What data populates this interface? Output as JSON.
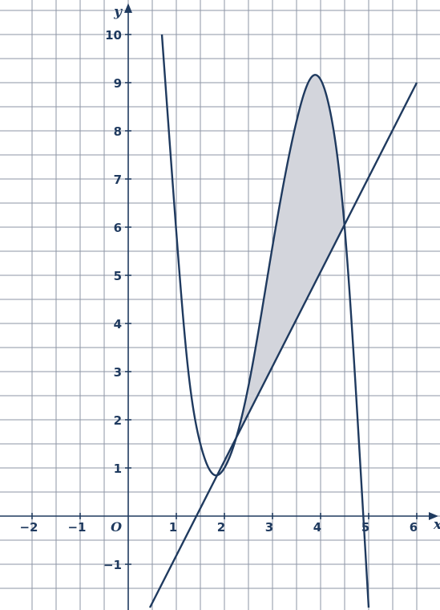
{
  "chart_data": {
    "type": "line",
    "title": "",
    "xlabel": "x",
    "ylabel": "y",
    "origin_label": "O",
    "xlim": [
      -2.3,
      6.5
    ],
    "ylim": [
      -1.9,
      10.5
    ],
    "grid": true,
    "grid_step": 0.5,
    "x_ticks": [
      {
        "value": -2,
        "label": "−2"
      },
      {
        "value": -1,
        "label": "−1"
      },
      {
        "value": 1,
        "label": "1"
      },
      {
        "value": 2,
        "label": "2"
      },
      {
        "value": 3,
        "label": "3"
      },
      {
        "value": 4,
        "label": "4"
      },
      {
        "value": 5,
        "label": "5"
      },
      {
        "value": 6,
        "label": "6"
      }
    ],
    "y_ticks": [
      {
        "value": -1,
        "label": "−1"
      },
      {
        "value": 1,
        "label": "1"
      },
      {
        "value": 2,
        "label": "2"
      },
      {
        "value": 3,
        "label": "3"
      },
      {
        "value": 4,
        "label": "4"
      },
      {
        "value": 5,
        "label": "5"
      },
      {
        "value": 6,
        "label": "6"
      },
      {
        "value": 7,
        "label": "7"
      },
      {
        "value": 8,
        "label": "8"
      },
      {
        "value": 9,
        "label": "9"
      },
      {
        "value": 10,
        "label": "10"
      }
    ],
    "series": [
      {
        "kind": "cubic-curve",
        "color": "#1f3a5f",
        "x": [
          0.7,
          1.0,
          1.25,
          1.5,
          1.8,
          2.0,
          2.5,
          3.0,
          3.5,
          3.85,
          4.2,
          4.5,
          4.8,
          5.0
        ],
        "y": [
          10.0,
          5.9,
          3.0,
          1.5,
          0.85,
          1.0,
          2.7,
          5.6,
          8.2,
          9.15,
          8.4,
          6.0,
          1.5,
          -1.9
        ]
      },
      {
        "kind": "line",
        "color": "#1f3a5f",
        "x": [
          0.45,
          6.0
        ],
        "y": [
          -1.9,
          9.0
        ]
      }
    ],
    "shaded_region": {
      "color": "#d3d5dc",
      "x_from": 2,
      "x_to": 4.5,
      "between": "curve and line"
    }
  }
}
